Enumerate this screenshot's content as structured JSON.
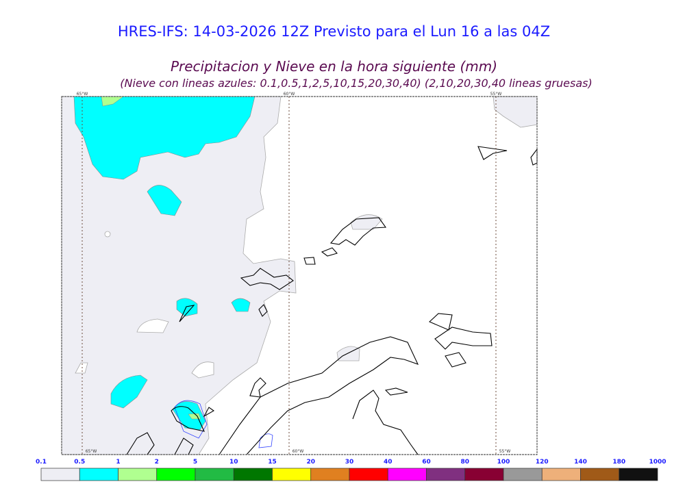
{
  "title": "HRES-IFS: 14-03-2026 12Z Previsto para el Lun 16 a las 04Z",
  "subtitle": "Precipitacion y Nieve en la hora siguiente (mm)",
  "note": "(Nieve con lineas azules: 0.1,0.5,1,2,5,10,15,20,30,40)  (2,10,20,30,40 lineas gruesas)",
  "meridians": [
    "65°W",
    "60°W",
    "55°W"
  ],
  "colorbar": {
    "labels": [
      "0.1",
      "0.5",
      "1",
      "2",
      "5",
      "10",
      "15",
      "20",
      "30",
      "40",
      "60",
      "80",
      "100",
      "120",
      "140",
      "180",
      "1000"
    ],
    "colors": [
      "#eeeef4",
      "#00ffff",
      "#b0ff90",
      "#00ff00",
      "#22bb44",
      "#007700",
      "#ffff00",
      "#e08020",
      "#ff0000",
      "#ff00ff",
      "#803080",
      "#880033",
      "#999999",
      "#eeb07a",
      "#a05a18",
      "#111111"
    ]
  },
  "colors": {
    "title": "#1a1aff",
    "subtitle": "#5a0a50",
    "snow_contour": "#3344ff"
  }
}
